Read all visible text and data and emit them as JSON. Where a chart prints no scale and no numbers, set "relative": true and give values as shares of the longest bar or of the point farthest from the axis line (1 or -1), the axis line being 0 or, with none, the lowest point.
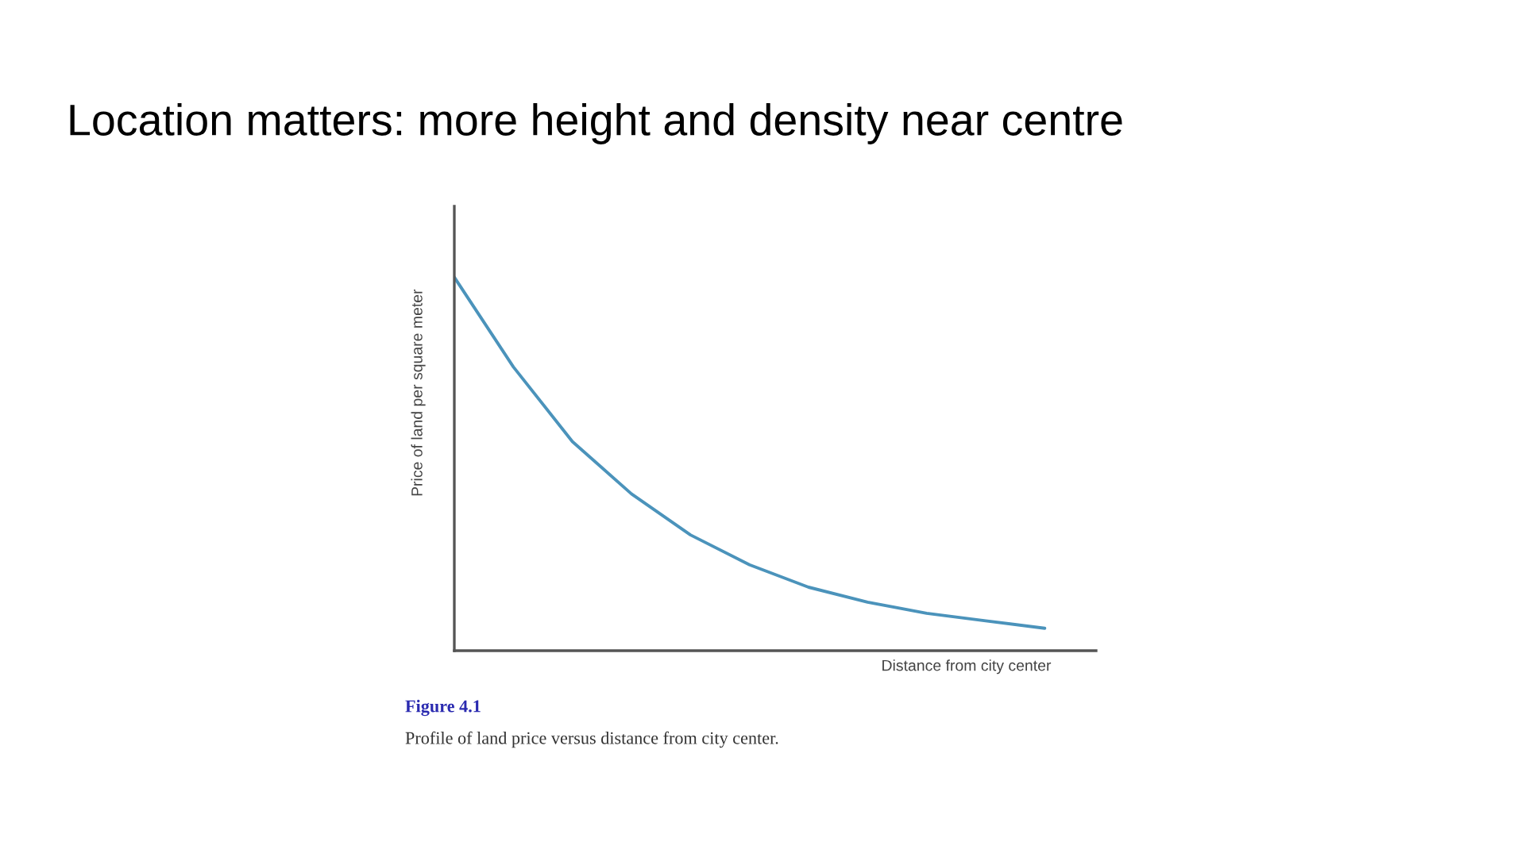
{
  "chart_data": {
    "type": "line",
    "relative": true,
    "title": "Location matters: more height and density near centre",
    "xlabel": "Distance from city center",
    "ylabel": "Price of land per square meter",
    "categories": [
      null,
      null,
      null,
      null,
      null,
      null,
      null,
      null,
      null,
      null,
      null
    ],
    "series": [
      {
        "color": "#4b93bb",
        "values": [
          1.0,
          0.76,
          0.56,
          0.42,
          0.31,
          0.23,
          0.17,
          0.13,
          0.1,
          0.08,
          0.06
        ]
      }
    ],
    "annotations": [
      "Figure 4.1",
      "Profile of land price versus distance from city center."
    ],
    "legend": false,
    "marker": "none",
    "line_style": "solid"
  }
}
